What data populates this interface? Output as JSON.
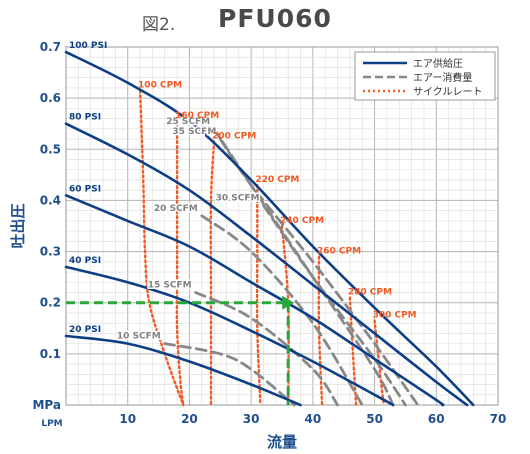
{
  "header": {
    "figure_label": "図2.",
    "title": "PFU060"
  },
  "chart_data": {
    "type": "line",
    "title": "PFU060",
    "xlabel": "流量",
    "ylabel": "吐出圧",
    "xunit": "LPM",
    "yunit": "MPa",
    "xlim": [
      0,
      70
    ],
    "ylim": [
      0,
      0.7
    ],
    "xticks": [
      "10",
      "20",
      "30",
      "40",
      "50",
      "60",
      "70"
    ],
    "yticks": [
      "0.1",
      "0.2",
      "0.3",
      "0.4",
      "0.5",
      "0.6",
      "0.7"
    ],
    "grid": true,
    "legend_position": "top-right",
    "legend": [
      {
        "label": "エア供給圧",
        "color": "#0d3f86",
        "style": "solid"
      },
      {
        "label": "エアー消費量",
        "color": "#888888",
        "style": "dashed"
      },
      {
        "label": "サイクルレート",
        "color": "#f15a22",
        "style": "dotted"
      }
    ],
    "series": [
      {
        "group": "supply",
        "name": "100 PSI",
        "points": [
          [
            0,
            0.69
          ],
          [
            10,
            0.63
          ],
          [
            20,
            0.555
          ],
          [
            30,
            0.44
          ],
          [
            40,
            0.31
          ],
          [
            50,
            0.19
          ],
          [
            60,
            0.075
          ],
          [
            66,
            0
          ]
        ]
      },
      {
        "group": "supply",
        "name": "80 PSI",
        "points": [
          [
            0,
            0.55
          ],
          [
            10,
            0.49
          ],
          [
            20,
            0.42
          ],
          [
            30,
            0.33
          ],
          [
            40,
            0.235
          ],
          [
            50,
            0.14
          ],
          [
            60,
            0.045
          ],
          [
            65,
            0
          ]
        ]
      },
      {
        "group": "supply",
        "name": "60 PSI",
        "points": [
          [
            0,
            0.41
          ],
          [
            10,
            0.36
          ],
          [
            20,
            0.31
          ],
          [
            30,
            0.24
          ],
          [
            40,
            0.17
          ],
          [
            50,
            0.09
          ],
          [
            60,
            0.01
          ],
          [
            61,
            0
          ]
        ]
      },
      {
        "group": "supply",
        "name": "40 PSI",
        "points": [
          [
            0,
            0.27
          ],
          [
            10,
            0.24
          ],
          [
            20,
            0.2
          ],
          [
            30,
            0.145
          ],
          [
            40,
            0.085
          ],
          [
            50,
            0.02
          ],
          [
            53,
            0
          ]
        ]
      },
      {
        "group": "supply",
        "name": "20 PSI",
        "points": [
          [
            0,
            0.135
          ],
          [
            10,
            0.12
          ],
          [
            20,
            0.085
          ],
          [
            30,
            0.04
          ],
          [
            38,
            0
          ]
        ]
      },
      {
        "group": "consumption",
        "name": "35 SCFM",
        "points": [
          [
            25,
            0.52
          ],
          [
            30,
            0.43
          ],
          [
            40,
            0.28
          ],
          [
            50,
            0.12
          ],
          [
            57,
            0
          ]
        ]
      },
      {
        "group": "consumption",
        "name": "30 SCFM",
        "points": [
          [
            32,
            0.39
          ],
          [
            40,
            0.25
          ],
          [
            50,
            0.09
          ],
          [
            55,
            0
          ]
        ]
      },
      {
        "group": "consumption",
        "name": "25 SCFM",
        "points": [
          [
            24,
            0.54
          ],
          [
            30,
            0.43
          ],
          [
            40,
            0.25
          ],
          [
            50,
            0.07
          ],
          [
            53,
            0
          ]
        ]
      },
      {
        "group": "consumption",
        "name": "20 SCFM",
        "points": [
          [
            22,
            0.37
          ],
          [
            30,
            0.3
          ],
          [
            40,
            0.16
          ],
          [
            48,
            0
          ]
        ]
      },
      {
        "group": "consumption",
        "name": "15 SCFM",
        "points": [
          [
            21,
            0.22
          ],
          [
            30,
            0.17
          ],
          [
            40,
            0.07
          ],
          [
            44,
            0
          ]
        ]
      },
      {
        "group": "consumption",
        "name": "10 SCFM",
        "points": [
          [
            16,
            0.12
          ],
          [
            25,
            0.1
          ],
          [
            30,
            0.07
          ],
          [
            37,
            0
          ]
        ]
      },
      {
        "group": "cycle",
        "name": "100 CPM",
        "points": [
          [
            12,
            0.615
          ],
          [
            12.5,
            0.45
          ],
          [
            12.8,
            0.3
          ],
          [
            13.5,
            0.2
          ],
          [
            16,
            0.1
          ],
          [
            19,
            0
          ]
        ]
      },
      {
        "group": "cycle",
        "name": "160 CPM",
        "points": [
          [
            18,
            0.555
          ],
          [
            18,
            0.4
          ],
          [
            18,
            0.25
          ],
          [
            18,
            0.15
          ],
          [
            18.5,
            0.05
          ],
          [
            19,
            0
          ]
        ]
      },
      {
        "group": "cycle",
        "name": "200 CPM",
        "points": [
          [
            24,
            0.515
          ],
          [
            23.5,
            0.4
          ],
          [
            23.5,
            0.2
          ],
          [
            23.5,
            0
          ]
        ]
      },
      {
        "group": "cycle",
        "name": "220 CPM",
        "points": [
          [
            31,
            0.43
          ],
          [
            31,
            0.3
          ],
          [
            31,
            0.15
          ],
          [
            31.5,
            0
          ]
        ]
      },
      {
        "group": "cycle",
        "name": "240 CPM",
        "points": [
          [
            35,
            0.35
          ],
          [
            36,
            0.2
          ],
          [
            36,
            0
          ]
        ]
      },
      {
        "group": "cycle",
        "name": "260 CPM",
        "points": [
          [
            41,
            0.29
          ],
          [
            41,
            0.15
          ],
          [
            41.5,
            0
          ]
        ]
      },
      {
        "group": "cycle",
        "name": "280 CPM",
        "points": [
          [
            46,
            0.21
          ],
          [
            46.5,
            0.1
          ],
          [
            47,
            0
          ]
        ]
      },
      {
        "group": "cycle",
        "name": "300 CPM",
        "points": [
          [
            50,
            0.165
          ],
          [
            51,
            0.05
          ],
          [
            51.5,
            0
          ]
        ]
      }
    ],
    "annotations": [
      {
        "type": "operating-point",
        "x": 36,
        "y": 0.2,
        "color": "#2aa73a",
        "style": "dashed"
      }
    ]
  }
}
